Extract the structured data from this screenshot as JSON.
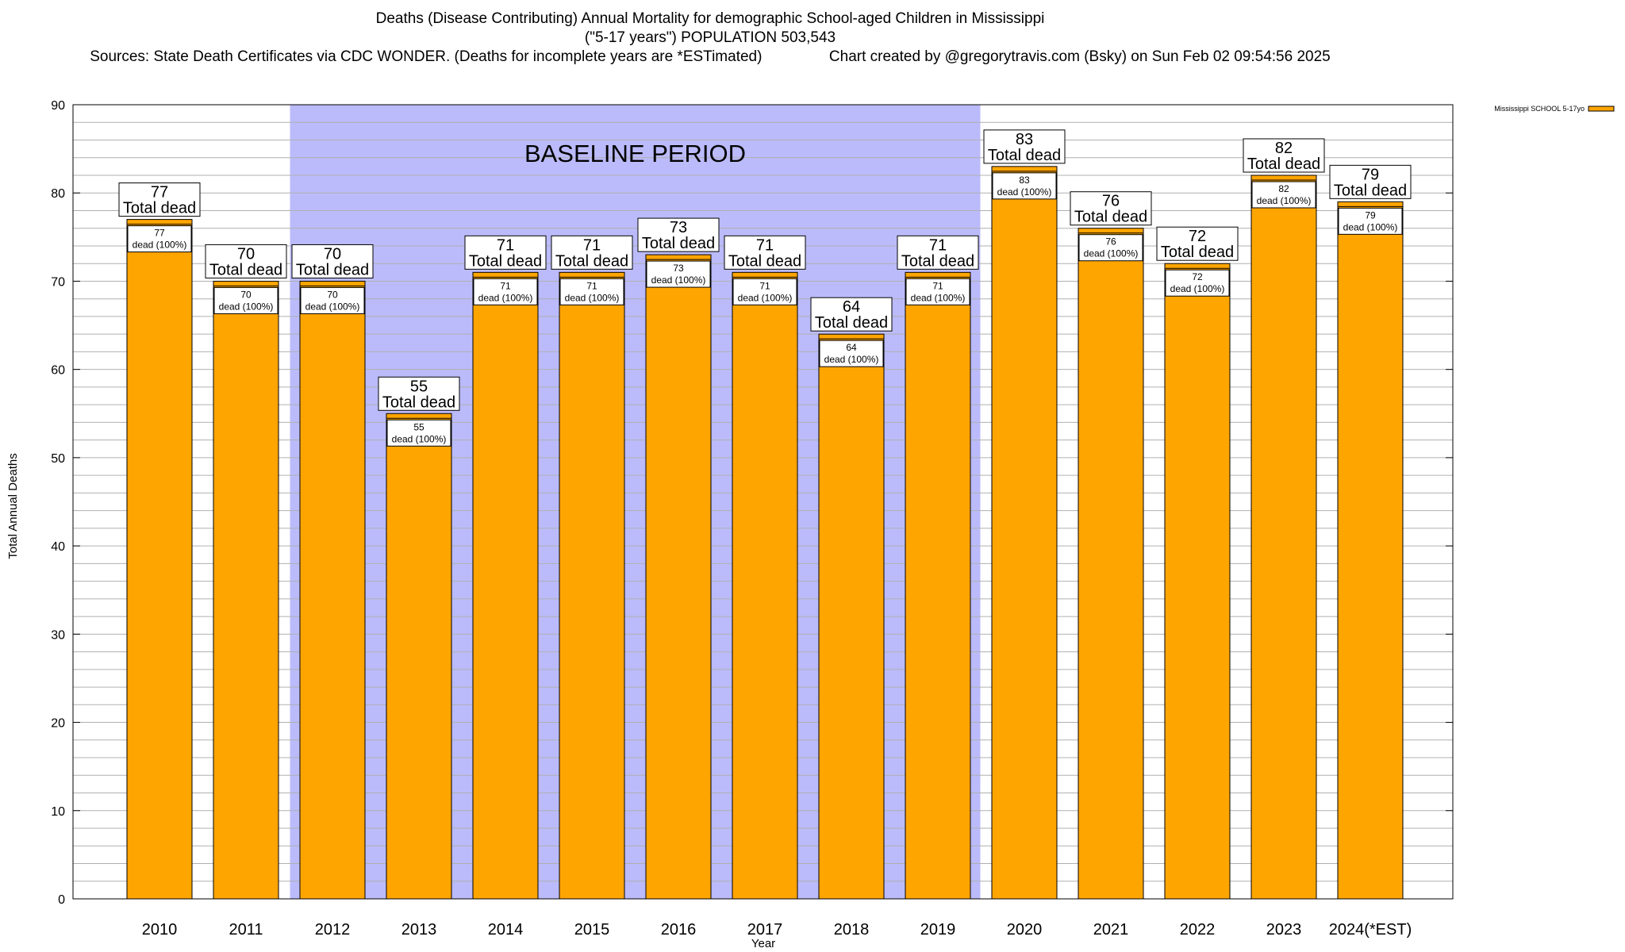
{
  "header": {
    "title_line1": "Deaths (Disease Contributing) Annual Mortality for demographic School-aged Children in Mississippi",
    "title_line2": "(\"5-17 years\") POPULATION 503,543",
    "sources": "Sources: State Death Certificates via CDC WONDER. (Deaths for incomplete years are *ESTimated)",
    "credit": "Chart created by @gregorytravis.com (Bsky) on Sun Feb 02 09:54:56 2025"
  },
  "chart_data": {
    "type": "bar",
    "categories": [
      "2010",
      "2011",
      "2012",
      "2013",
      "2014",
      "2015",
      "2016",
      "2017",
      "2018",
      "2019",
      "2020",
      "2021",
      "2022",
      "2023",
      "2024(*EST)"
    ],
    "series": [
      {
        "name": "Mississippi SCHOOL 5-17yo",
        "values": [
          77,
          70,
          70,
          55,
          71,
          71,
          73,
          71,
          64,
          71,
          83,
          76,
          72,
          82,
          79
        ]
      }
    ],
    "top_label_line2": "Total dead",
    "inner_label_line2": "dead (100%)",
    "xlabel": "Year",
    "ylabel": "Total Annual Deaths",
    "ylim": [
      0,
      90
    ],
    "yticks": [
      0,
      10,
      20,
      30,
      40,
      50,
      60,
      70,
      80,
      90
    ],
    "minor_tick_step": 2,
    "grid": true,
    "legend_position": "top-right, outside plot",
    "baseline_period": {
      "label": "BASELINE PERIOD",
      "from": "2012",
      "to": "2019"
    },
    "colors": {
      "bar": "#ffa500",
      "baseline_shade": "#bbbbfb",
      "grid": "#b0b0b0"
    }
  }
}
